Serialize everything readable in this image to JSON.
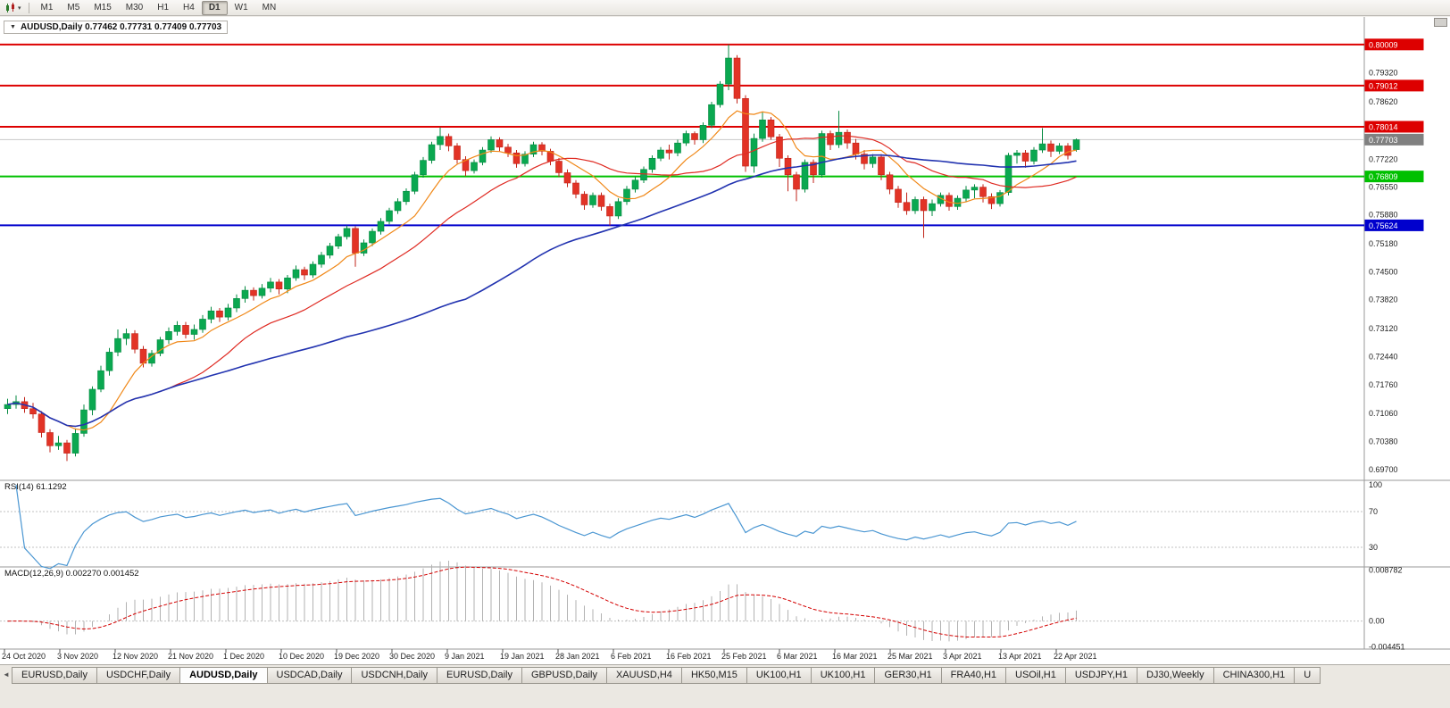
{
  "toolbar": {
    "chart_button": {
      "caret": "▾"
    },
    "timeframes": [
      {
        "label": "M1",
        "active": false
      },
      {
        "label": "M5",
        "active": false
      },
      {
        "label": "M15",
        "active": false
      },
      {
        "label": "M30",
        "active": false
      },
      {
        "label": "H1",
        "active": false
      },
      {
        "label": "H4",
        "active": false
      },
      {
        "label": "D1",
        "active": true
      },
      {
        "label": "W1",
        "active": false
      },
      {
        "label": "MN",
        "active": false
      }
    ]
  },
  "chart": {
    "collapse_icon": "▼",
    "title": "AUDUSD,Daily 0.77462 0.77731 0.77409 0.77703"
  },
  "indicators": {
    "rsi_label": "RSI(14) 61.1292",
    "macd_label": "MACD(12,26,9) 0.002270 0.001452"
  },
  "tab_scroll_icon": "◄",
  "tabs": [
    {
      "label": "EURUSD,Daily",
      "active": false
    },
    {
      "label": "USDCHF,Daily",
      "active": false
    },
    {
      "label": "AUDUSD,Daily",
      "active": true
    },
    {
      "label": "USDCAD,Daily",
      "active": false
    },
    {
      "label": "USDCNH,Daily",
      "active": false
    },
    {
      "label": "EURUSD,Daily",
      "active": false
    },
    {
      "label": "GBPUSD,Daily",
      "active": false
    },
    {
      "label": "XAUUSD,H4",
      "active": false
    },
    {
      "label": "HK50,M15",
      "active": false
    },
    {
      "label": "UK100,H1",
      "active": false
    },
    {
      "label": "UK100,H1",
      "active": false
    },
    {
      "label": "GER30,H1",
      "active": false
    },
    {
      "label": "FRA40,H1",
      "active": false
    },
    {
      "label": "USOil,H1",
      "active": false
    },
    {
      "label": "USDJPY,H1",
      "active": false
    },
    {
      "label": "DJ30,Weekly",
      "active": false
    },
    {
      "label": "CHINA300,H1",
      "active": false
    },
    {
      "label": "U",
      "active": false
    }
  ],
  "chart_data": {
    "type": "candlestick",
    "symbol": "AUDUSD",
    "timeframe": "Daily",
    "title": "AUDUSD,Daily",
    "ylim": [
      0.6955,
      0.802
    ],
    "y_ticks": [
      "0.79320",
      "0.78620",
      "0.77220",
      "0.76550",
      "0.75880",
      "0.75180",
      "0.74500",
      "0.73820",
      "0.73120",
      "0.72440",
      "0.71760",
      "0.71060",
      "0.70380",
      "0.69700"
    ],
    "x_labels": [
      "24 Oct 2020",
      "3 Nov 2020",
      "12 Nov 2020",
      "21 Nov 2020",
      "1 Dec 2020",
      "10 Dec 2020",
      "19 Dec 2020",
      "30 Dec 2020",
      "9 Jan 2021",
      "19 Jan 2021",
      "28 Jan 2021",
      "6 Feb 2021",
      "16 Feb 2021",
      "25 Feb 2021",
      "6 Mar 2021",
      "16 Mar 2021",
      "25 Mar 2021",
      "3 Apr 2021",
      "13 Apr 2021",
      "22 Apr 2021"
    ],
    "price_lines": [
      {
        "price": 0.80009,
        "label": "0.80009",
        "color": "#dd0000",
        "width": 2
      },
      {
        "price": 0.79012,
        "label": "0.79012",
        "color": "#dd0000",
        "width": 2
      },
      {
        "price": 0.78014,
        "label": "0.78014",
        "color": "#dd0000",
        "width": 2
      },
      {
        "price": 0.76809,
        "label": "0.76809",
        "color": "#00c000",
        "width": 2
      },
      {
        "price": 0.75624,
        "label": "0.75624",
        "color": "#0000cd",
        "width": 2
      }
    ],
    "current_price": {
      "price": 0.77703,
      "label": "0.77703",
      "color": "#808080"
    },
    "moving_averages": [
      {
        "type": "sma",
        "period": 8,
        "color": "#f08818"
      },
      {
        "type": "sma",
        "period": 20,
        "color": "#df2a22"
      },
      {
        "type": "sma",
        "period": 55,
        "color": "#2233b0"
      }
    ],
    "rsi": {
      "period": 14,
      "value": "61.1292",
      "color": "#4a96d2",
      "levels": [
        70,
        30
      ],
      "axis": [
        {
          "v": 100,
          "label": "100"
        },
        {
          "v": 70,
          "label": "70"
        },
        {
          "v": 30,
          "label": "30"
        }
      ]
    },
    "macd": {
      "fast": 12,
      "slow": 26,
      "signal": 9,
      "value": "0.002270",
      "signal_value": "0.001452",
      "hist_color": "#b2b2b2",
      "signal_color": "#d40000",
      "range": [
        -0.0045,
        0.009
      ],
      "axis": [
        {
          "v": 0.008782,
          "label": "0.008782"
        },
        {
          "v": 0,
          "label": "0.00"
        },
        {
          "v": -0.004451,
          "label": "-0.004451"
        }
      ]
    },
    "ohlc": [
      [
        0.7118,
        0.7142,
        0.7105,
        0.7128
      ],
      [
        0.7128,
        0.715,
        0.7118,
        0.7135
      ],
      [
        0.7135,
        0.7146,
        0.7108,
        0.7118
      ],
      [
        0.7118,
        0.7132,
        0.7094,
        0.7105
      ],
      [
        0.7105,
        0.7112,
        0.7048,
        0.706
      ],
      [
        0.706,
        0.7068,
        0.7012,
        0.7028
      ],
      [
        0.7028,
        0.7052,
        0.7018,
        0.7035
      ],
      [
        0.7035,
        0.7042,
        0.6991,
        0.701
      ],
      [
        0.701,
        0.707,
        0.7002,
        0.7058
      ],
      [
        0.7058,
        0.7128,
        0.705,
        0.7115
      ],
      [
        0.7115,
        0.7172,
        0.7102,
        0.7165
      ],
      [
        0.7165,
        0.7222,
        0.7158,
        0.721
      ],
      [
        0.721,
        0.7265,
        0.7198,
        0.7255
      ],
      [
        0.7255,
        0.731,
        0.7245,
        0.7288
      ],
      [
        0.7288,
        0.7312,
        0.7272,
        0.73
      ],
      [
        0.73,
        0.7308,
        0.7252,
        0.7262
      ],
      [
        0.7262,
        0.727,
        0.7218,
        0.7228
      ],
      [
        0.7228,
        0.726,
        0.722,
        0.7252
      ],
      [
        0.7252,
        0.7292,
        0.7245,
        0.7285
      ],
      [
        0.7285,
        0.7315,
        0.7275,
        0.7305
      ],
      [
        0.7305,
        0.733,
        0.7295,
        0.732
      ],
      [
        0.732,
        0.7328,
        0.7288,
        0.7298
      ],
      [
        0.7298,
        0.7322,
        0.7285,
        0.731
      ],
      [
        0.731,
        0.7345,
        0.7302,
        0.7335
      ],
      [
        0.7335,
        0.7365,
        0.7325,
        0.7355
      ],
      [
        0.7355,
        0.7362,
        0.7328,
        0.734
      ],
      [
        0.734,
        0.7372,
        0.7332,
        0.7362
      ],
      [
        0.7362,
        0.7395,
        0.7352,
        0.7385
      ],
      [
        0.7385,
        0.7415,
        0.7375,
        0.7405
      ],
      [
        0.7405,
        0.7412,
        0.738,
        0.7392
      ],
      [
        0.7392,
        0.742,
        0.7385,
        0.741
      ],
      [
        0.741,
        0.7435,
        0.74,
        0.7425
      ],
      [
        0.7425,
        0.7432,
        0.7395,
        0.7408
      ],
      [
        0.7408,
        0.7442,
        0.7398,
        0.7435
      ],
      [
        0.7435,
        0.7465,
        0.7428,
        0.7455
      ],
      [
        0.7455,
        0.7462,
        0.743,
        0.7442
      ],
      [
        0.7442,
        0.7475,
        0.7435,
        0.7468
      ],
      [
        0.7468,
        0.7498,
        0.746,
        0.749
      ],
      [
        0.749,
        0.752,
        0.7482,
        0.7512
      ],
      [
        0.7512,
        0.7542,
        0.7505,
        0.7535
      ],
      [
        0.7535,
        0.7562,
        0.7528,
        0.7555
      ],
      [
        0.7555,
        0.756,
        0.7462,
        0.7495
      ],
      [
        0.7495,
        0.7528,
        0.7488,
        0.752
      ],
      [
        0.752,
        0.7555,
        0.7512,
        0.7548
      ],
      [
        0.7548,
        0.758,
        0.754,
        0.7572
      ],
      [
        0.7572,
        0.7605,
        0.7565,
        0.7598
      ],
      [
        0.7598,
        0.7628,
        0.759,
        0.762
      ],
      [
        0.762,
        0.7652,
        0.7612,
        0.7645
      ],
      [
        0.7645,
        0.7692,
        0.7638,
        0.7685
      ],
      [
        0.7685,
        0.7728,
        0.7678,
        0.772
      ],
      [
        0.772,
        0.7765,
        0.7712,
        0.7758
      ],
      [
        0.7758,
        0.78,
        0.7745,
        0.7778
      ],
      [
        0.7778,
        0.7785,
        0.7742,
        0.7755
      ],
      [
        0.7755,
        0.7762,
        0.7712,
        0.7722
      ],
      [
        0.7722,
        0.773,
        0.7682,
        0.7695
      ],
      [
        0.7695,
        0.7722,
        0.7688,
        0.7715
      ],
      [
        0.7715,
        0.7752,
        0.7708,
        0.7745
      ],
      [
        0.7745,
        0.7778,
        0.7738,
        0.777
      ],
      [
        0.777,
        0.7776,
        0.7742,
        0.7752
      ],
      [
        0.7752,
        0.776,
        0.7728,
        0.7738
      ],
      [
        0.7738,
        0.7745,
        0.7702,
        0.7712
      ],
      [
        0.7712,
        0.7742,
        0.7705,
        0.7735
      ],
      [
        0.7735,
        0.7765,
        0.7728,
        0.7758
      ],
      [
        0.7758,
        0.7764,
        0.7732,
        0.7742
      ],
      [
        0.7742,
        0.7748,
        0.7708,
        0.7718
      ],
      [
        0.7718,
        0.7726,
        0.768,
        0.769
      ],
      [
        0.769,
        0.7698,
        0.7655,
        0.7665
      ],
      [
        0.7665,
        0.7672,
        0.7628,
        0.7638
      ],
      [
        0.7638,
        0.7645,
        0.76,
        0.7612
      ],
      [
        0.7612,
        0.7642,
        0.7605,
        0.7635
      ],
      [
        0.7635,
        0.7642,
        0.7598,
        0.7608
      ],
      [
        0.7608,
        0.7615,
        0.7562,
        0.7585
      ],
      [
        0.7585,
        0.7628,
        0.7578,
        0.762
      ],
      [
        0.762,
        0.7658,
        0.7612,
        0.765
      ],
      [
        0.765,
        0.768,
        0.7642,
        0.7672
      ],
      [
        0.7672,
        0.7705,
        0.7665,
        0.7698
      ],
      [
        0.7698,
        0.7732,
        0.769,
        0.7725
      ],
      [
        0.7725,
        0.7752,
        0.7718,
        0.7745
      ],
      [
        0.7745,
        0.7758,
        0.7722,
        0.7738
      ],
      [
        0.7738,
        0.777,
        0.773,
        0.7762
      ],
      [
        0.7762,
        0.7792,
        0.7755,
        0.7785
      ],
      [
        0.7785,
        0.779,
        0.7758,
        0.777
      ],
      [
        0.777,
        0.7812,
        0.7762,
        0.7805
      ],
      [
        0.7805,
        0.7862,
        0.7798,
        0.7855
      ],
      [
        0.7855,
        0.7912,
        0.7848,
        0.7905
      ],
      [
        0.7905,
        0.8001,
        0.789,
        0.7968
      ],
      [
        0.7968,
        0.7975,
        0.7858,
        0.787
      ],
      [
        0.787,
        0.7878,
        0.7692,
        0.7706
      ],
      [
        0.7706,
        0.7785,
        0.769,
        0.7773
      ],
      [
        0.7773,
        0.7838,
        0.7765,
        0.7818
      ],
      [
        0.7818,
        0.7825,
        0.777,
        0.7777
      ],
      [
        0.7777,
        0.7784,
        0.7704,
        0.7725
      ],
      [
        0.7725,
        0.7732,
        0.7645,
        0.7685
      ],
      [
        0.7685,
        0.7692,
        0.7621,
        0.765
      ],
      [
        0.765,
        0.7722,
        0.7642,
        0.7715
      ],
      [
        0.7715,
        0.7722,
        0.7665,
        0.7685
      ],
      [
        0.7685,
        0.7792,
        0.7678,
        0.7785
      ],
      [
        0.7785,
        0.7792,
        0.7745,
        0.7758
      ],
      [
        0.7758,
        0.784,
        0.775,
        0.7788
      ],
      [
        0.7788,
        0.7795,
        0.7748,
        0.7762
      ],
      [
        0.7762,
        0.7772,
        0.7722,
        0.7735
      ],
      [
        0.7735,
        0.7745,
        0.7698,
        0.7712
      ],
      [
        0.7712,
        0.7735,
        0.7702,
        0.7728
      ],
      [
        0.7728,
        0.7735,
        0.7672,
        0.7685
      ],
      [
        0.7685,
        0.7692,
        0.7638,
        0.765
      ],
      [
        0.765,
        0.7658,
        0.7605,
        0.7618
      ],
      [
        0.7618,
        0.7642,
        0.7588,
        0.7598
      ],
      [
        0.7598,
        0.7632,
        0.759,
        0.7625
      ],
      [
        0.7625,
        0.7632,
        0.7532,
        0.7598
      ],
      [
        0.7598,
        0.7625,
        0.7585,
        0.7615
      ],
      [
        0.7615,
        0.7642,
        0.7608,
        0.7635
      ],
      [
        0.7635,
        0.7642,
        0.7598,
        0.7608
      ],
      [
        0.7608,
        0.7635,
        0.76,
        0.7628
      ],
      [
        0.7628,
        0.7658,
        0.762,
        0.7648
      ],
      [
        0.7648,
        0.7662,
        0.7628,
        0.7655
      ],
      [
        0.7655,
        0.7662,
        0.7618,
        0.7632
      ],
      [
        0.7632,
        0.764,
        0.7602,
        0.7615
      ],
      [
        0.7615,
        0.7648,
        0.7608,
        0.7642
      ],
      [
        0.7642,
        0.7738,
        0.7635,
        0.7732
      ],
      [
        0.7732,
        0.7745,
        0.7712,
        0.7738
      ],
      [
        0.7738,
        0.7745,
        0.7702,
        0.7718
      ],
      [
        0.7718,
        0.7752,
        0.771,
        0.7745
      ],
      [
        0.7745,
        0.7798,
        0.7738,
        0.776
      ],
      [
        0.776,
        0.7768,
        0.7728,
        0.7742
      ],
      [
        0.7742,
        0.7762,
        0.7735,
        0.7755
      ],
      [
        0.7755,
        0.7762,
        0.7722,
        0.7732
      ],
      [
        0.7746,
        0.7773,
        0.7741,
        0.777
      ]
    ]
  }
}
